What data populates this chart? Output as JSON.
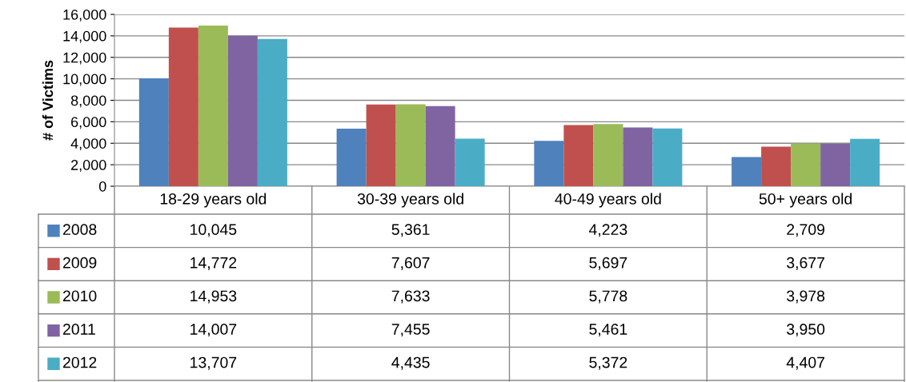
{
  "chart_data": {
    "type": "bar",
    "ylabel": "# of Victims",
    "categories": [
      "18-29 years old",
      "30-39 years old",
      "40-49 years old",
      "50+ years old"
    ],
    "series": [
      {
        "name": "2008",
        "color": "#4f81bd",
        "values": [
          10045,
          5361,
          4223,
          2709
        ],
        "value_labels": [
          "10,045",
          "5,361",
          "4,223",
          "2,709"
        ]
      },
      {
        "name": "2009",
        "color": "#c0504d",
        "values": [
          14772,
          7607,
          5697,
          3677
        ],
        "value_labels": [
          "14,772",
          "7,607",
          "5,697",
          "3,677"
        ]
      },
      {
        "name": "2010",
        "color": "#9bbb59",
        "values": [
          14953,
          7633,
          5778,
          3978
        ],
        "value_labels": [
          "14,953",
          "7,633",
          "5,778",
          "3,978"
        ]
      },
      {
        "name": "2011",
        "color": "#8064a2",
        "values": [
          14007,
          7455,
          5461,
          3950
        ],
        "value_labels": [
          "14,007",
          "7,455",
          "5,461",
          "3,950"
        ]
      },
      {
        "name": "2012",
        "color": "#4bacc6",
        "values": [
          13707,
          4435,
          5372,
          4407
        ],
        "value_labels": [
          "13,707",
          "4,435",
          "5,372",
          "4,407"
        ]
      }
    ],
    "ylim": [
      0,
      16000
    ],
    "yticks": [
      0,
      {
        "value": 2000,
        "label": "2,000"
      },
      {
        "value": 4000,
        "label": "4,000"
      },
      {
        "value": 6000,
        "label": "6,000"
      },
      {
        "value": 8000,
        "label": "8,000"
      },
      {
        "value": 10000,
        "label": "10,000"
      },
      {
        "value": 12000,
        "label": "12,000"
      },
      {
        "value": 14000,
        "label": "14,000"
      },
      {
        "value": 16000,
        "label": "16,000"
      }
    ],
    "grid": "y",
    "legend": "bottom"
  }
}
